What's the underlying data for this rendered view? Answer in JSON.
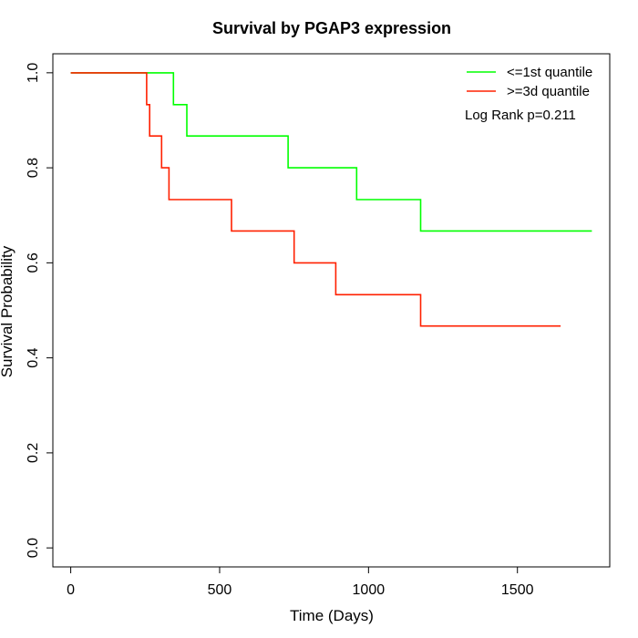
{
  "chart_data": {
    "type": "line",
    "title": "Survival by PGAP3 expression",
    "xlabel": "Time (Days)",
    "ylabel": "Survival Probability",
    "xlim": [
      -60,
      1810
    ],
    "ylim": [
      -0.04,
      1.04
    ],
    "xticks": [
      0,
      500,
      1000,
      1500
    ],
    "yticks": [
      0.0,
      0.2,
      0.4,
      0.6,
      0.8,
      1.0
    ],
    "xtick_labels": [
      "0",
      "500",
      "1000",
      "1500"
    ],
    "ytick_labels": [
      "0.0",
      "0.2",
      "0.4",
      "0.6",
      "0.8",
      "1.0"
    ],
    "step": "post",
    "legend_position": "top-right",
    "annotation": "Log Rank p=0.211",
    "series": [
      {
        "name": "<=1st quantile",
        "color": "#00ff00",
        "x": [
          0,
          345,
          390,
          730,
          960,
          1175,
          1750
        ],
        "y": [
          1.0,
          0.933,
          0.867,
          0.8,
          0.733,
          0.667,
          0.667
        ]
      },
      {
        "name": ">=3d quantile",
        "color": "#ff2000",
        "x": [
          0,
          255,
          265,
          305,
          330,
          540,
          750,
          890,
          1175,
          1645
        ],
        "y": [
          1.0,
          0.933,
          0.867,
          0.8,
          0.733,
          0.667,
          0.6,
          0.533,
          0.467,
          0.467
        ]
      }
    ]
  }
}
